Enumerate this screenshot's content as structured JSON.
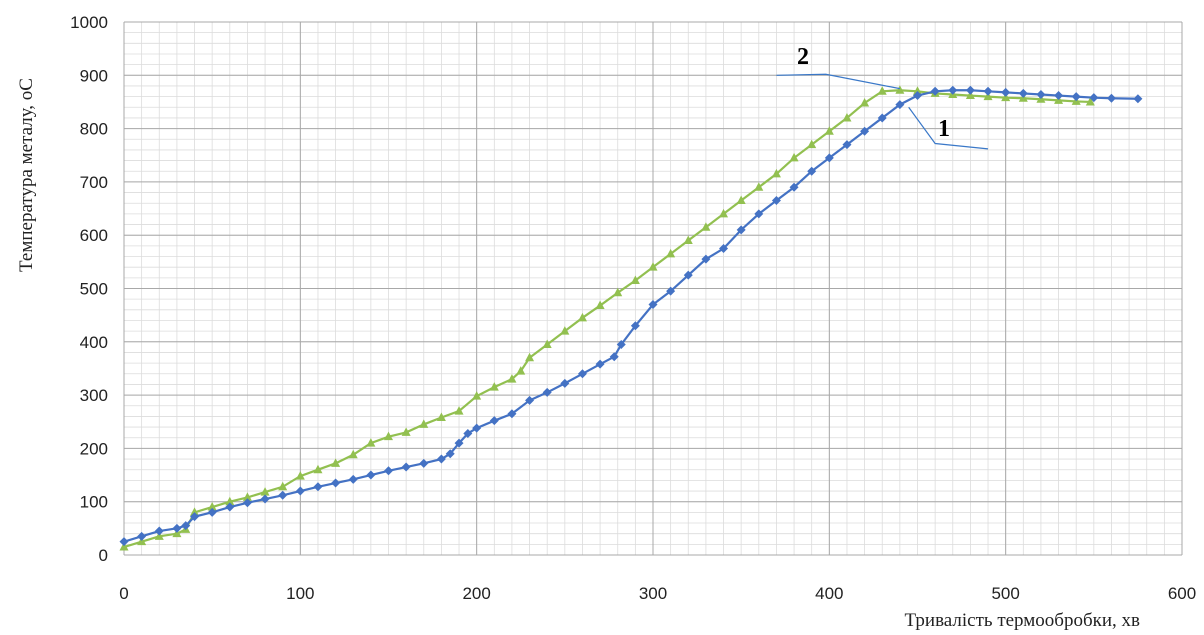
{
  "chart_data": {
    "type": "line",
    "xlabel": "Тривалість термообробки, хв",
    "ylabel": "Температура  металу, оС",
    "xlim": [
      0,
      600
    ],
    "ylim": [
      0,
      1000
    ],
    "x_ticks": [
      "0",
      "100",
      "200",
      "300",
      "400",
      "500",
      "600"
    ],
    "y_ticks": [
      "0",
      "100",
      "200",
      "300",
      "400",
      "500",
      "600",
      "700",
      "800",
      "900",
      "1000"
    ],
    "grid": true,
    "series": [
      {
        "name": "1",
        "color": "#4472C4",
        "marker": "diamond",
        "points": [
          [
            0,
            25
          ],
          [
            10,
            35
          ],
          [
            20,
            45
          ],
          [
            30,
            50
          ],
          [
            35,
            55
          ],
          [
            40,
            72
          ],
          [
            50,
            80
          ],
          [
            60,
            90
          ],
          [
            70,
            98
          ],
          [
            80,
            105
          ],
          [
            90,
            112
          ],
          [
            100,
            120
          ],
          [
            110,
            128
          ],
          [
            120,
            135
          ],
          [
            130,
            142
          ],
          [
            140,
            150
          ],
          [
            150,
            158
          ],
          [
            160,
            165
          ],
          [
            170,
            172
          ],
          [
            180,
            180
          ],
          [
            185,
            190
          ],
          [
            190,
            210
          ],
          [
            195,
            228
          ],
          [
            200,
            238
          ],
          [
            210,
            252
          ],
          [
            220,
            265
          ],
          [
            230,
            290
          ],
          [
            240,
            305
          ],
          [
            250,
            322
          ],
          [
            260,
            340
          ],
          [
            270,
            358
          ],
          [
            278,
            372
          ],
          [
            282,
            395
          ],
          [
            290,
            430
          ],
          [
            300,
            470
          ],
          [
            310,
            495
          ],
          [
            320,
            525
          ],
          [
            330,
            555
          ],
          [
            340,
            575
          ],
          [
            350,
            610
          ],
          [
            360,
            640
          ],
          [
            370,
            665
          ],
          [
            380,
            690
          ],
          [
            390,
            720
          ],
          [
            400,
            745
          ],
          [
            410,
            770
          ],
          [
            420,
            795
          ],
          [
            430,
            820
          ],
          [
            440,
            845
          ],
          [
            450,
            862
          ],
          [
            460,
            870
          ],
          [
            470,
            872
          ],
          [
            480,
            872
          ],
          [
            490,
            870
          ],
          [
            500,
            868
          ],
          [
            510,
            866
          ],
          [
            520,
            864
          ],
          [
            530,
            862
          ],
          [
            540,
            860
          ],
          [
            550,
            858
          ],
          [
            560,
            857
          ],
          [
            575,
            856
          ]
        ]
      },
      {
        "name": "2",
        "color": "#92C050",
        "marker": "triangle",
        "points": [
          [
            0,
            15
          ],
          [
            10,
            25
          ],
          [
            20,
            35
          ],
          [
            30,
            40
          ],
          [
            35,
            48
          ],
          [
            40,
            80
          ],
          [
            50,
            90
          ],
          [
            60,
            100
          ],
          [
            70,
            108
          ],
          [
            80,
            118
          ],
          [
            90,
            128
          ],
          [
            100,
            148
          ],
          [
            110,
            160
          ],
          [
            120,
            172
          ],
          [
            130,
            188
          ],
          [
            140,
            210
          ],
          [
            150,
            222
          ],
          [
            160,
            230
          ],
          [
            170,
            245
          ],
          [
            180,
            258
          ],
          [
            190,
            270
          ],
          [
            200,
            298
          ],
          [
            210,
            315
          ],
          [
            220,
            330
          ],
          [
            225,
            345
          ],
          [
            230,
            370
          ],
          [
            240,
            395
          ],
          [
            250,
            420
          ],
          [
            260,
            445
          ],
          [
            270,
            468
          ],
          [
            280,
            492
          ],
          [
            290,
            515
          ],
          [
            300,
            540
          ],
          [
            310,
            565
          ],
          [
            320,
            590
          ],
          [
            330,
            615
          ],
          [
            340,
            640
          ],
          [
            350,
            665
          ],
          [
            360,
            690
          ],
          [
            370,
            715
          ],
          [
            380,
            745
          ],
          [
            390,
            770
          ],
          [
            400,
            795
          ],
          [
            410,
            820
          ],
          [
            420,
            848
          ],
          [
            430,
            870
          ],
          [
            440,
            872
          ],
          [
            450,
            870
          ],
          [
            460,
            866
          ],
          [
            470,
            864
          ],
          [
            480,
            862
          ],
          [
            490,
            860
          ],
          [
            500,
            858
          ],
          [
            510,
            857
          ],
          [
            520,
            855
          ],
          [
            530,
            853
          ],
          [
            540,
            851
          ],
          [
            548,
            850
          ]
        ]
      }
    ]
  }
}
